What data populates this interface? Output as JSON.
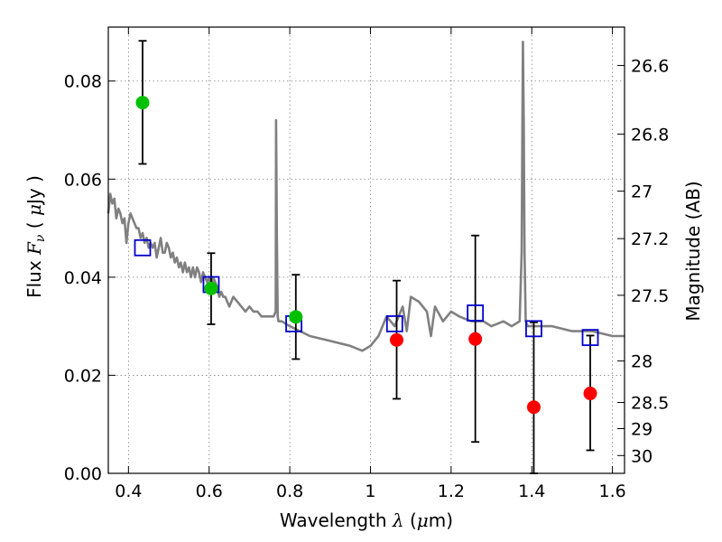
{
  "chart_data": {
    "type": "scatter",
    "xlabel_text": "Wavelength",
    "xlabel_symbol": "λ",
    "xlabel_unit_open": " (",
    "xlabel_mu": "μ",
    "xlabel_unit_close": "m)",
    "ylabel_text": "Flux",
    "ylabel_symbol": "F",
    "ylabel_sub": "ν",
    "ylabel_unit_open": " ( ",
    "ylabel_mu": "μ",
    "ylabel_unit_close": "Jy )",
    "y2label": "Magnitude (AB)",
    "xlim": [
      0.35,
      1.63
    ],
    "ylim": [
      0.0,
      0.091
    ],
    "x_ticks": [
      {
        "value": 0.4,
        "label": "0.4"
      },
      {
        "value": 0.6,
        "label": "0.6"
      },
      {
        "value": 0.8,
        "label": "0.8"
      },
      {
        "value": 1.0,
        "label": "1"
      },
      {
        "value": 1.2,
        "label": "1.2"
      },
      {
        "value": 1.4,
        "label": "1.4"
      },
      {
        "value": 1.6,
        "label": "1.6"
      }
    ],
    "y_ticks": [
      {
        "value": 0.0,
        "label": "0.00"
      },
      {
        "value": 0.02,
        "label": "0.02"
      },
      {
        "value": 0.04,
        "label": "0.04"
      },
      {
        "value": 0.06,
        "label": "0.06"
      },
      {
        "value": 0.08,
        "label": "0.08"
      }
    ],
    "mag_ticks": [
      {
        "value": 26.6,
        "label": "26.6"
      },
      {
        "value": 26.8,
        "label": "26.8"
      },
      {
        "value": 27.0,
        "label": "27"
      },
      {
        "value": 27.2,
        "label": "27.2"
      },
      {
        "value": 27.5,
        "label": "27.5"
      },
      {
        "value": 28.0,
        "label": "28"
      },
      {
        "value": 28.5,
        "label": "28.5"
      },
      {
        "value": 29.0,
        "label": "29"
      },
      {
        "value": 30.0,
        "label": "30"
      }
    ],
    "colors": {
      "model": "#808080",
      "model_boxes": "#0000cc",
      "detections": "#00c000",
      "upper_limits": "#ff0000",
      "errorbar": "#000000",
      "grid": "#7f7f7f"
    },
    "series": [
      {
        "name": "model_spectrum",
        "kind": "line",
        "x": [
          0.35,
          0.355,
          0.36,
          0.365,
          0.37,
          0.375,
          0.38,
          0.385,
          0.39,
          0.395,
          0.4,
          0.405,
          0.41,
          0.415,
          0.42,
          0.425,
          0.43,
          0.435,
          0.44,
          0.445,
          0.45,
          0.455,
          0.46,
          0.465,
          0.47,
          0.475,
          0.48,
          0.485,
          0.49,
          0.495,
          0.5,
          0.505,
          0.51,
          0.515,
          0.52,
          0.525,
          0.53,
          0.535,
          0.54,
          0.545,
          0.55,
          0.555,
          0.56,
          0.565,
          0.57,
          0.575,
          0.58,
          0.585,
          0.59,
          0.595,
          0.6,
          0.605,
          0.61,
          0.615,
          0.62,
          0.625,
          0.63,
          0.635,
          0.64,
          0.645,
          0.65,
          0.655,
          0.66,
          0.67,
          0.68,
          0.69,
          0.7,
          0.71,
          0.72,
          0.73,
          0.74,
          0.75,
          0.76,
          0.765,
          0.766,
          0.768,
          0.77,
          0.772,
          0.78,
          0.8,
          0.85,
          0.9,
          0.95,
          0.98,
          1.0,
          1.02,
          1.04,
          1.06,
          1.08,
          1.09,
          1.1,
          1.12,
          1.14,
          1.15,
          1.16,
          1.18,
          1.2,
          1.22,
          1.25,
          1.28,
          1.3,
          1.33,
          1.35,
          1.37,
          1.375,
          1.378,
          1.38,
          1.382,
          1.385,
          1.39,
          1.4,
          1.45,
          1.5,
          1.55,
          1.6,
          1.63
        ],
        "y": [
          0.053,
          0.057,
          0.055,
          0.056,
          0.052,
          0.054,
          0.053,
          0.051,
          0.052,
          0.047,
          0.051,
          0.053,
          0.052,
          0.051,
          0.05,
          0.05,
          0.048,
          0.049,
          0.047,
          0.048,
          0.046,
          0.047,
          0.046,
          0.047,
          0.044,
          0.046,
          0.048,
          0.045,
          0.045,
          0.047,
          0.046,
          0.044,
          0.045,
          0.043,
          0.044,
          0.042,
          0.043,
          0.041,
          0.043,
          0.041,
          0.042,
          0.04,
          0.042,
          0.04,
          0.042,
          0.041,
          0.039,
          0.041,
          0.04,
          0.039,
          0.04,
          0.038,
          0.04,
          0.039,
          0.038,
          0.036,
          0.037,
          0.036,
          0.036,
          0.035,
          0.034,
          0.035,
          0.036,
          0.035,
          0.034,
          0.033,
          0.034,
          0.033,
          0.033,
          0.032,
          0.032,
          0.032,
          0.032,
          0.033,
          0.072,
          0.048,
          0.032,
          0.031,
          0.031,
          0.03,
          0.028,
          0.027,
          0.026,
          0.025,
          0.026,
          0.028,
          0.032,
          0.03,
          0.034,
          0.029,
          0.036,
          0.035,
          0.033,
          0.028,
          0.034,
          0.031,
          0.033,
          0.032,
          0.031,
          0.031,
          0.03,
          0.031,
          0.03,
          0.031,
          0.045,
          0.088,
          0.072,
          0.045,
          0.031,
          0.03,
          0.03,
          0.03,
          0.029,
          0.029,
          0.028,
          0.028
        ]
      },
      {
        "name": "model_bandpass",
        "kind": "open-square",
        "x": [
          0.435,
          0.605,
          0.81,
          1.06,
          1.26,
          1.405,
          1.545
        ],
        "y": [
          0.046,
          0.0385,
          0.0305,
          0.0305,
          0.0327,
          0.0295,
          0.0277
        ]
      },
      {
        "name": "detections",
        "kind": "filled-circle",
        "x": [
          0.435,
          0.605,
          0.815
        ],
        "y": [
          0.0756,
          0.0377,
          0.0319
        ],
        "err_low": [
          0.0631,
          0.0304,
          0.0233
        ],
        "err_high": [
          0.0882,
          0.0449,
          0.0405
        ]
      },
      {
        "name": "upper_limits",
        "kind": "filled-circle",
        "x": [
          1.065,
          1.26,
          1.405,
          1.545
        ],
        "y": [
          0.0272,
          0.0274,
          0.0135,
          0.0163
        ],
        "err_low": [
          0.0152,
          0.0064,
          0.0,
          0.0047
        ],
        "err_high": [
          0.0393,
          0.0485,
          0.0308,
          0.0281
        ]
      }
    ]
  }
}
